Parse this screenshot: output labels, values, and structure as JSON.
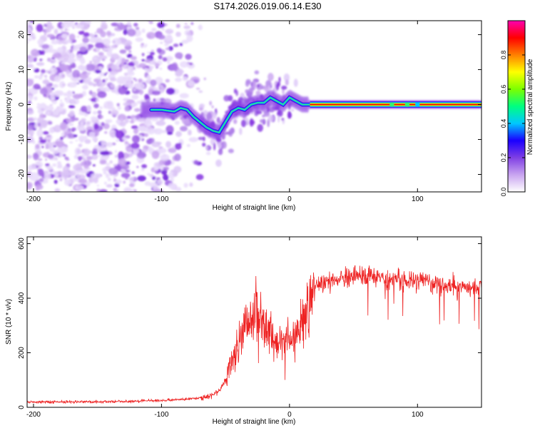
{
  "title": "S174.2026.019.06.14.E30",
  "chart_data": [
    {
      "type": "heatmap",
      "title": "S174.2026.019.06.14.E30",
      "xlabel": "Height of straight line (km)",
      "ylabel": "Frequency (Hz)",
      "xlim": [
        -205,
        150
      ],
      "ylim": [
        -25,
        24
      ],
      "xticks": [
        -200,
        -100,
        0,
        100
      ],
      "yticks": [
        -20,
        -10,
        0,
        10,
        20
      ],
      "ridge": {
        "x": [
          -110,
          -100,
          -90,
          -85,
          -80,
          -75,
          -70,
          -65,
          -60,
          -55,
          -50,
          -45,
          -40,
          -35,
          -30,
          -25,
          -20,
          -15,
          -10,
          -5,
          0,
          5,
          10,
          15,
          20,
          40,
          60,
          80,
          100,
          150
        ],
        "y": [
          -1.5,
          -1.5,
          -2,
          -1,
          -1.5,
          -3.5,
          -5,
          -6.5,
          -7.5,
          -8,
          -5,
          -2,
          -1,
          -1.5,
          0,
          0.5,
          0.5,
          2,
          1,
          0,
          2,
          1,
          0,
          0,
          0,
          0,
          0,
          0,
          0,
          0
        ]
      },
      "colorbar": {
        "label": "Normalized spectral amplitude",
        "range": [
          0.0,
          1.0
        ],
        "ticks": [
          0.0,
          0.2,
          0.4,
          0.6,
          0.8
        ],
        "tick_labels": [
          "0.0",
          "0.2",
          "0.4",
          "0.6",
          "0.8"
        ],
        "colors": [
          "#ffffff",
          "#c9a4f0",
          "#7f3fe4",
          "#1a00ff",
          "#00c8ff",
          "#00ff80",
          "#7cff00",
          "#ffff00",
          "#ff8000",
          "#ff0000",
          "#ff00b0"
        ]
      }
    },
    {
      "type": "line",
      "xlabel": "Height of straight line (km)",
      "ylabel": "SNR (10 * v/v)",
      "xlim": [
        -205,
        150
      ],
      "ylim": [
        0,
        625
      ],
      "xticks": [
        -200,
        -100,
        0,
        100
      ],
      "yticks": [
        0,
        200,
        400,
        600
      ],
      "color": "#ee2222",
      "series": [
        {
          "name": "SNR",
          "x": [
            -205,
            -150,
            -100,
            -80,
            -70,
            -60,
            -55,
            -50,
            -45,
            -40,
            -35,
            -30,
            -25,
            -20,
            -15,
            -10,
            -5,
            0,
            5,
            10,
            15,
            20,
            30,
            40,
            50,
            60,
            80,
            100,
            120,
            140,
            150
          ],
          "y": [
            20,
            20,
            25,
            30,
            35,
            45,
            60,
            100,
            170,
            230,
            280,
            330,
            370,
            300,
            260,
            230,
            260,
            250,
            280,
            320,
            390,
            450,
            460,
            470,
            480,
            480,
            470,
            460,
            450,
            440,
            440
          ]
        }
      ]
    }
  ]
}
